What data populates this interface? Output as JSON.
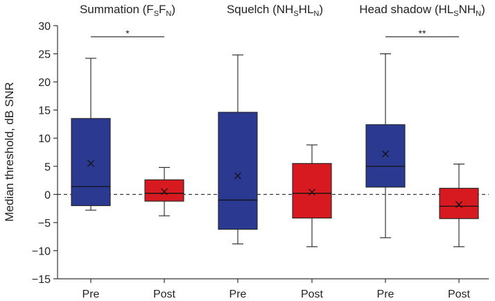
{
  "chart_data": {
    "type": "box",
    "ylabel": "Median threshold, dB SNR",
    "ylim": [
      -15,
      30
    ],
    "yticks": [
      30,
      25,
      20,
      15,
      10,
      5,
      0,
      -5,
      -10,
      -15
    ],
    "reference_line": 0,
    "groups": [
      {
        "title": {
          "pre": "Summation (F",
          "s1": "S",
          "mid": "F",
          "s2": "N",
          "post": ")"
        },
        "significance": "*",
        "boxes": [
          {
            "label": "Pre",
            "color": "#2b3990",
            "whisker_low": -2.8,
            "q1": -2.0,
            "median": 1.4,
            "q3": 13.5,
            "whisker_high": 24.2,
            "mean": 5.5
          },
          {
            "label": "Post",
            "color": "#d71920",
            "whisker_low": -3.8,
            "q1": -1.2,
            "median": 0.2,
            "q3": 2.6,
            "whisker_high": 4.8,
            "mean": 0.5
          }
        ]
      },
      {
        "title": {
          "pre": "Squelch (NH",
          "s1": "S",
          "mid": "HL",
          "s2": "N",
          "post": ")"
        },
        "significance": "",
        "boxes": [
          {
            "label": "Pre",
            "color": "#2b3990",
            "whisker_low": -8.8,
            "q1": -6.2,
            "median": -1.0,
            "q3": 14.6,
            "whisker_high": 24.8,
            "mean": 3.3
          },
          {
            "label": "Post",
            "color": "#d71920",
            "whisker_low": -9.3,
            "q1": -4.2,
            "median": 0.2,
            "q3": 5.5,
            "whisker_high": 8.8,
            "mean": 0.4
          }
        ]
      },
      {
        "title": {
          "pre": "Head shadow (HL",
          "s1": "S",
          "mid": "NH",
          "s2": "N",
          "post": ")"
        },
        "significance": "**",
        "boxes": [
          {
            "label": "Pre",
            "color": "#2b3990",
            "whisker_low": -7.7,
            "q1": 1.3,
            "median": 5.0,
            "q3": 12.4,
            "whisker_high": 25.0,
            "mean": 7.2
          },
          {
            "label": "Post",
            "color": "#d71920",
            "whisker_low": -9.3,
            "q1": -4.3,
            "median": -2.1,
            "q3": 1.1,
            "whisker_high": 5.4,
            "mean": -1.8
          }
        ]
      }
    ]
  }
}
